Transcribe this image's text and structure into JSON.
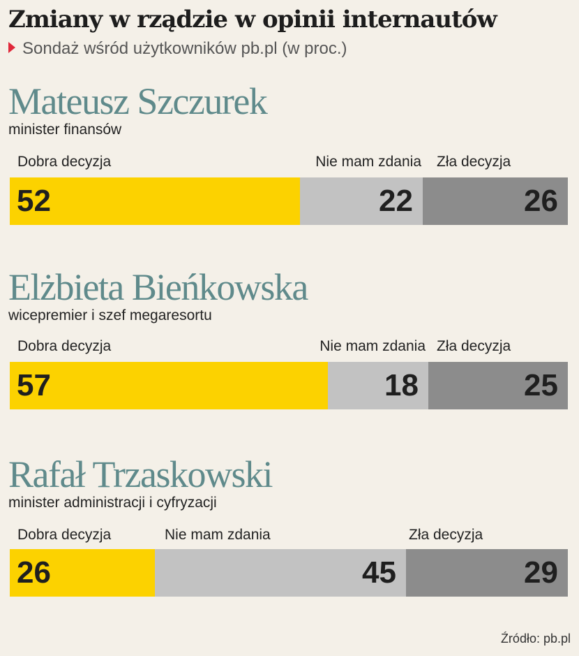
{
  "title": "Zmiany w rządzie w opinii internautów",
  "subtitle": "Sondaż wśród użytkowników pb.pl (w proc.)",
  "source": "Źródło: pb.pl",
  "colors": {
    "dobra": "#fcd200",
    "nie_mam_zdania": "#c2c2c2",
    "zla": "#8c8c8c",
    "name_text": "#5f8a8b",
    "marker": "#e0283a"
  },
  "chart_data": {
    "type": "bar",
    "stacked": true,
    "orientation": "horizontal",
    "title": "Zmiany w rządzie w opinii internautów",
    "subtitle": "Sondaż wśród użytkowników pb.pl (w proc.)",
    "categories": [
      "Mateusz Szczurek",
      "Elżbieta Bieńkowska",
      "Rafał Trzaskowski"
    ],
    "roles": [
      "minister finansów",
      "wicepremier i szef megaresortu",
      "minister administracji i cyfryzacji"
    ],
    "series": [
      {
        "name": "Dobra decyzja",
        "values": [
          52,
          57,
          26
        ]
      },
      {
        "name": "Nie mam zdania",
        "values": [
          22,
          18,
          45
        ]
      },
      {
        "name": "Zła decyzja",
        "values": [
          26,
          25,
          29
        ]
      }
    ],
    "xlim": [
      0,
      100
    ]
  }
}
